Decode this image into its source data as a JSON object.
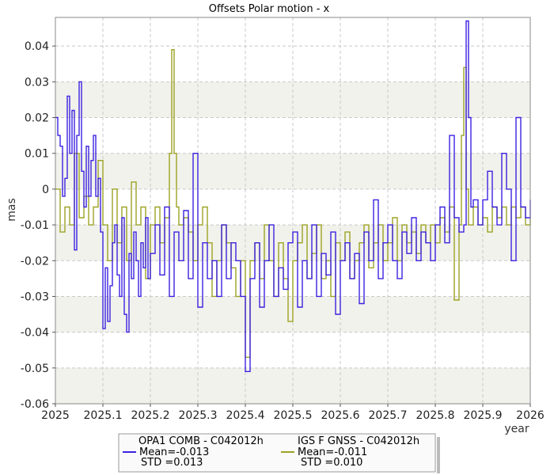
{
  "chart_data": {
    "type": "line",
    "title": "Offsets Polar motion - x",
    "xlabel": "year",
    "ylabel": "mas",
    "xlim": [
      2025.0,
      2026.0
    ],
    "ylim": [
      -0.06,
      0.048
    ],
    "x_ticks": [
      2025,
      2025.1,
      2025.2,
      2025.3,
      2025.4,
      2025.5,
      2025.6,
      2025.7,
      2025.8,
      2025.9,
      2026
    ],
    "x_tick_labels": [
      "2025",
      "2025.1",
      "2025.2",
      "2025.3",
      "2025.4",
      "2025.5",
      "2025.6",
      "2025.7",
      "2025.8",
      "2025.9",
      "2026"
    ],
    "y_ticks": [
      -0.06,
      -0.05,
      -0.04,
      -0.03,
      -0.02,
      -0.01,
      0,
      0.01,
      0.02,
      0.03,
      0.04
    ],
    "y_tick_labels": [
      "-0.06",
      "-0.05",
      "-0.04",
      "-0.03",
      "-0.02",
      "-0.01",
      "0",
      "0.01",
      "0.02",
      "0.03",
      "0.04"
    ],
    "grid": true,
    "banded_background": true,
    "legend_position": "bottom",
    "series": [
      {
        "name": "OPA1 COMB - C042012h",
        "color": "#3b22e0",
        "stats": [
          "Mean=-0.013",
          "STD =0.013"
        ],
        "x": [
          2025.0,
          2025.005,
          2025.01,
          2025.015,
          2025.02,
          2025.025,
          2025.03,
          2025.035,
          2025.04,
          2025.045,
          2025.05,
          2025.055,
          2025.06,
          2025.065,
          2025.07,
          2025.075,
          2025.08,
          2025.085,
          2025.09,
          2025.095,
          2025.1,
          2025.105,
          2025.11,
          2025.115,
          2025.12,
          2025.125,
          2025.13,
          2025.135,
          2025.14,
          2025.145,
          2025.15,
          2025.155,
          2025.16,
          2025.165,
          2025.17,
          2025.175,
          2025.18,
          2025.185,
          2025.19,
          2025.195,
          2025.2,
          2025.21,
          2025.22,
          2025.23,
          2025.24,
          2025.25,
          2025.26,
          2025.27,
          2025.28,
          2025.29,
          2025.3,
          2025.31,
          2025.32,
          2025.33,
          2025.34,
          2025.35,
          2025.36,
          2025.37,
          2025.38,
          2025.39,
          2025.4,
          2025.41,
          2025.42,
          2025.43,
          2025.44,
          2025.45,
          2025.46,
          2025.47,
          2025.48,
          2025.49,
          2025.5,
          2025.51,
          2025.52,
          2025.53,
          2025.54,
          2025.55,
          2025.56,
          2025.57,
          2025.58,
          2025.59,
          2025.6,
          2025.61,
          2025.62,
          2025.63,
          2025.64,
          2025.65,
          2025.66,
          2025.67,
          2025.68,
          2025.69,
          2025.7,
          2025.71,
          2025.72,
          2025.73,
          2025.74,
          2025.75,
          2025.76,
          2025.77,
          2025.78,
          2025.79,
          2025.8,
          2025.81,
          2025.82,
          2025.83,
          2025.84,
          2025.85,
          2025.86,
          2025.865,
          2025.87,
          2025.875,
          2025.88,
          2025.89,
          2025.9,
          2025.91,
          2025.92,
          2025.93,
          2025.94,
          2025.95,
          2025.96,
          2025.97,
          2025.98,
          2025.99,
          2026.0
        ],
        "values": [
          0.02,
          0.015,
          0.012,
          -0.002,
          0.003,
          0.026,
          0.01,
          0.022,
          -0.017,
          0.015,
          0.03,
          0.005,
          -0.005,
          0.012,
          -0.002,
          0.008,
          0.015,
          -0.002,
          0.003,
          -0.012,
          -0.039,
          -0.022,
          -0.037,
          -0.027,
          -0.015,
          -0.01,
          -0.024,
          -0.03,
          -0.008,
          -0.035,
          -0.04,
          -0.018,
          -0.025,
          -0.012,
          -0.02,
          -0.03,
          -0.015,
          -0.022,
          -0.008,
          -0.025,
          -0.018,
          -0.01,
          -0.024,
          -0.005,
          -0.03,
          -0.012,
          -0.02,
          -0.006,
          -0.025,
          0.01,
          -0.033,
          -0.015,
          -0.025,
          -0.02,
          -0.03,
          -0.01,
          -0.025,
          -0.015,
          -0.02,
          -0.03,
          -0.051,
          -0.025,
          -0.015,
          -0.033,
          -0.02,
          -0.01,
          -0.03,
          -0.022,
          -0.028,
          -0.015,
          -0.012,
          -0.033,
          -0.02,
          -0.025,
          -0.01,
          -0.03,
          -0.018,
          -0.024,
          -0.012,
          -0.035,
          -0.02,
          -0.015,
          -0.025,
          -0.018,
          -0.032,
          -0.012,
          -0.02,
          -0.003,
          -0.025,
          -0.015,
          -0.01,
          -0.02,
          -0.025,
          -0.012,
          -0.018,
          -0.008,
          -0.02,
          -0.012,
          -0.015,
          -0.02,
          -0.01,
          -0.005,
          -0.015,
          0.015,
          -0.008,
          -0.012,
          -0.01,
          0.047,
          0.02,
          -0.005,
          -0.003,
          -0.01,
          -0.003,
          0.005,
          -0.005,
          -0.01,
          0.01,
          0.0,
          -0.02,
          0.02,
          -0.005,
          -0.008,
          -0.003
        ]
      },
      {
        "name": "IGS F GNSS - C042012h",
        "color": "#9ca324",
        "stats": [
          "Mean=-0.011",
          "STD =0.010"
        ],
        "x": [
          2025.0,
          2025.01,
          2025.02,
          2025.03,
          2025.04,
          2025.05,
          2025.06,
          2025.07,
          2025.08,
          2025.09,
          2025.1,
          2025.11,
          2025.12,
          2025.13,
          2025.14,
          2025.15,
          2025.16,
          2025.17,
          2025.18,
          2025.19,
          2025.2,
          2025.21,
          2025.22,
          2025.23,
          2025.24,
          2025.245,
          2025.25,
          2025.255,
          2025.26,
          2025.27,
          2025.28,
          2025.29,
          2025.3,
          2025.31,
          2025.32,
          2025.33,
          2025.34,
          2025.35,
          2025.36,
          2025.37,
          2025.38,
          2025.39,
          2025.4,
          2025.41,
          2025.42,
          2025.43,
          2025.44,
          2025.45,
          2025.46,
          2025.47,
          2025.48,
          2025.49,
          2025.5,
          2025.51,
          2025.52,
          2025.53,
          2025.54,
          2025.55,
          2025.56,
          2025.57,
          2025.58,
          2025.59,
          2025.6,
          2025.61,
          2025.62,
          2025.63,
          2025.64,
          2025.65,
          2025.66,
          2025.67,
          2025.68,
          2025.69,
          2025.7,
          2025.71,
          2025.72,
          2025.73,
          2025.74,
          2025.75,
          2025.76,
          2025.77,
          2025.78,
          2025.79,
          2025.8,
          2025.81,
          2025.82,
          2025.83,
          2025.84,
          2025.85,
          2025.855,
          2025.86,
          2025.865,
          2025.87,
          2025.88,
          2025.89,
          2025.9,
          2025.91,
          2025.92,
          2025.93,
          2025.94,
          2025.95,
          2025.96,
          2025.97,
          2025.98,
          2025.99,
          2026.0
        ],
        "values": [
          0.0,
          -0.012,
          -0.005,
          -0.01,
          0.01,
          -0.008,
          -0.002,
          -0.01,
          -0.005,
          0.008,
          -0.01,
          -0.02,
          0.0,
          -0.015,
          -0.005,
          -0.02,
          0.002,
          -0.01,
          -0.005,
          -0.025,
          -0.01,
          -0.005,
          -0.015,
          -0.008,
          0.01,
          0.039,
          0.01,
          -0.005,
          -0.01,
          -0.008,
          -0.012,
          -0.02,
          -0.01,
          -0.005,
          -0.015,
          -0.03,
          -0.02,
          -0.01,
          -0.015,
          -0.022,
          -0.03,
          -0.02,
          -0.047,
          -0.02,
          -0.015,
          -0.025,
          -0.01,
          -0.02,
          -0.03,
          -0.015,
          -0.025,
          -0.037,
          -0.02,
          -0.015,
          -0.01,
          -0.025,
          -0.018,
          -0.01,
          -0.025,
          -0.02,
          -0.03,
          -0.015,
          -0.02,
          -0.012,
          -0.025,
          -0.02,
          -0.015,
          -0.01,
          -0.022,
          -0.015,
          -0.01,
          -0.02,
          -0.015,
          -0.008,
          -0.02,
          -0.01,
          -0.015,
          -0.012,
          -0.018,
          -0.01,
          -0.015,
          -0.01,
          -0.015,
          -0.008,
          -0.012,
          -0.005,
          -0.031,
          -0.01,
          0.015,
          0.034,
          0.0,
          -0.01,
          -0.005,
          -0.01,
          -0.008,
          -0.012,
          -0.005,
          -0.008,
          -0.005,
          -0.01,
          -0.005,
          -0.008,
          -0.005,
          -0.01,
          -0.008
        ]
      }
    ]
  }
}
